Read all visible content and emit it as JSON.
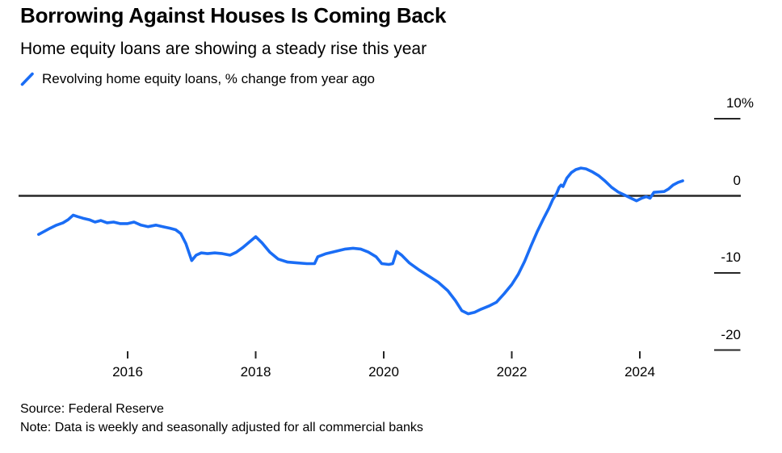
{
  "chart_data": {
    "type": "line",
    "title": "Borrowing Against Houses Is Coming Back",
    "subtitle": "Home equity loans are showing a steady rise this year",
    "legend": {
      "icon": "blue-slash-icon",
      "label": "Revolving home equity loans, % change from year ago",
      "position": "top-left"
    },
    "xlabel": "",
    "ylabel": "% change from year ago",
    "xlim": [
      2014.3,
      2025.6
    ],
    "ylim": [
      -20,
      10
    ],
    "grid": "off",
    "zero_baseline": true,
    "x_ticks": [
      {
        "label": "2016",
        "year": 2016
      },
      {
        "label": "2018",
        "year": 2018
      },
      {
        "label": "2020",
        "year": 2020
      },
      {
        "label": "2022",
        "year": 2022
      },
      {
        "label": "2024",
        "year": 2024
      }
    ],
    "y_ticks": [
      {
        "label": "10%",
        "value": 10
      },
      {
        "label": "0",
        "value": 0
      },
      {
        "label": "-10",
        "value": -10
      },
      {
        "label": "-20",
        "value": -20
      }
    ],
    "series": [
      {
        "name": "Revolving home equity loans, % change from year ago",
        "color": "#1a6df5",
        "points": [
          [
            2014.61,
            -5.0
          ],
          [
            2014.7,
            -4.6
          ],
          [
            2014.79,
            -4.2
          ],
          [
            2014.89,
            -3.8
          ],
          [
            2014.99,
            -3.5
          ],
          [
            2015.07,
            -3.1
          ],
          [
            2015.15,
            -2.5
          ],
          [
            2015.22,
            -2.7
          ],
          [
            2015.3,
            -2.9
          ],
          [
            2015.4,
            -3.1
          ],
          [
            2015.49,
            -3.4
          ],
          [
            2015.58,
            -3.2
          ],
          [
            2015.68,
            -3.5
          ],
          [
            2015.78,
            -3.4
          ],
          [
            2015.88,
            -3.6
          ],
          [
            2016.0,
            -3.6
          ],
          [
            2016.1,
            -3.4
          ],
          [
            2016.21,
            -3.8
          ],
          [
            2016.32,
            -4.0
          ],
          [
            2016.44,
            -3.8
          ],
          [
            2016.55,
            -4.0
          ],
          [
            2016.66,
            -4.2
          ],
          [
            2016.75,
            -4.4
          ],
          [
            2016.83,
            -4.9
          ],
          [
            2016.91,
            -6.2
          ],
          [
            2017.0,
            -8.4
          ],
          [
            2017.07,
            -7.7
          ],
          [
            2017.15,
            -7.4
          ],
          [
            2017.25,
            -7.5
          ],
          [
            2017.36,
            -7.4
          ],
          [
            2017.48,
            -7.5
          ],
          [
            2017.6,
            -7.7
          ],
          [
            2017.7,
            -7.3
          ],
          [
            2017.8,
            -6.7
          ],
          [
            2017.9,
            -6.0
          ],
          [
            2018.0,
            -5.3
          ],
          [
            2018.1,
            -6.1
          ],
          [
            2018.22,
            -7.3
          ],
          [
            2018.35,
            -8.2
          ],
          [
            2018.5,
            -8.6
          ],
          [
            2018.65,
            -8.7
          ],
          [
            2018.8,
            -8.8
          ],
          [
            2018.92,
            -8.8
          ],
          [
            2018.97,
            -7.9
          ],
          [
            2019.1,
            -7.5
          ],
          [
            2019.25,
            -7.2
          ],
          [
            2019.4,
            -6.9
          ],
          [
            2019.52,
            -6.8
          ],
          [
            2019.64,
            -6.9
          ],
          [
            2019.76,
            -7.3
          ],
          [
            2019.88,
            -7.9
          ],
          [
            2019.97,
            -8.8
          ],
          [
            2020.08,
            -8.9
          ],
          [
            2020.14,
            -8.8
          ],
          [
            2020.2,
            -7.2
          ],
          [
            2020.28,
            -7.7
          ],
          [
            2020.4,
            -8.7
          ],
          [
            2020.55,
            -9.6
          ],
          [
            2020.7,
            -10.4
          ],
          [
            2020.85,
            -11.2
          ],
          [
            2021.0,
            -12.3
          ],
          [
            2021.12,
            -13.6
          ],
          [
            2021.22,
            -14.9
          ],
          [
            2021.32,
            -15.3
          ],
          [
            2021.42,
            -15.1
          ],
          [
            2021.52,
            -14.7
          ],
          [
            2021.64,
            -14.3
          ],
          [
            2021.76,
            -13.8
          ],
          [
            2021.88,
            -12.7
          ],
          [
            2022.0,
            -11.5
          ],
          [
            2022.1,
            -10.2
          ],
          [
            2022.2,
            -8.5
          ],
          [
            2022.3,
            -6.5
          ],
          [
            2022.4,
            -4.6
          ],
          [
            2022.5,
            -2.9
          ],
          [
            2022.58,
            -1.6
          ],
          [
            2022.64,
            -0.5
          ],
          [
            2022.7,
            0.3
          ],
          [
            2022.74,
            1.1
          ],
          [
            2022.77,
            1.4
          ],
          [
            2022.8,
            1.2
          ],
          [
            2022.86,
            2.3
          ],
          [
            2022.93,
            3.0
          ],
          [
            2023.0,
            3.4
          ],
          [
            2023.08,
            3.6
          ],
          [
            2023.16,
            3.5
          ],
          [
            2023.26,
            3.1
          ],
          [
            2023.36,
            2.6
          ],
          [
            2023.46,
            1.9
          ],
          [
            2023.56,
            1.1
          ],
          [
            2023.66,
            0.5
          ],
          [
            2023.76,
            0.1
          ],
          [
            2023.86,
            -0.3
          ],
          [
            2023.95,
            -0.65
          ],
          [
            2024.03,
            -0.3
          ],
          [
            2024.1,
            -0.1
          ],
          [
            2024.16,
            -0.3
          ],
          [
            2024.22,
            0.45
          ],
          [
            2024.3,
            0.5
          ],
          [
            2024.38,
            0.55
          ],
          [
            2024.45,
            0.9
          ],
          [
            2024.52,
            1.4
          ],
          [
            2024.6,
            1.75
          ],
          [
            2024.67,
            1.95
          ]
        ]
      }
    ]
  },
  "footer": {
    "source": "Source: Federal Reserve",
    "note": "Note: Data is weekly and seasonally adjusted for all commercial banks"
  },
  "colors": {
    "line": "#1a6df5",
    "axis": "#262626",
    "text": "#000000",
    "background": "#ffffff"
  }
}
